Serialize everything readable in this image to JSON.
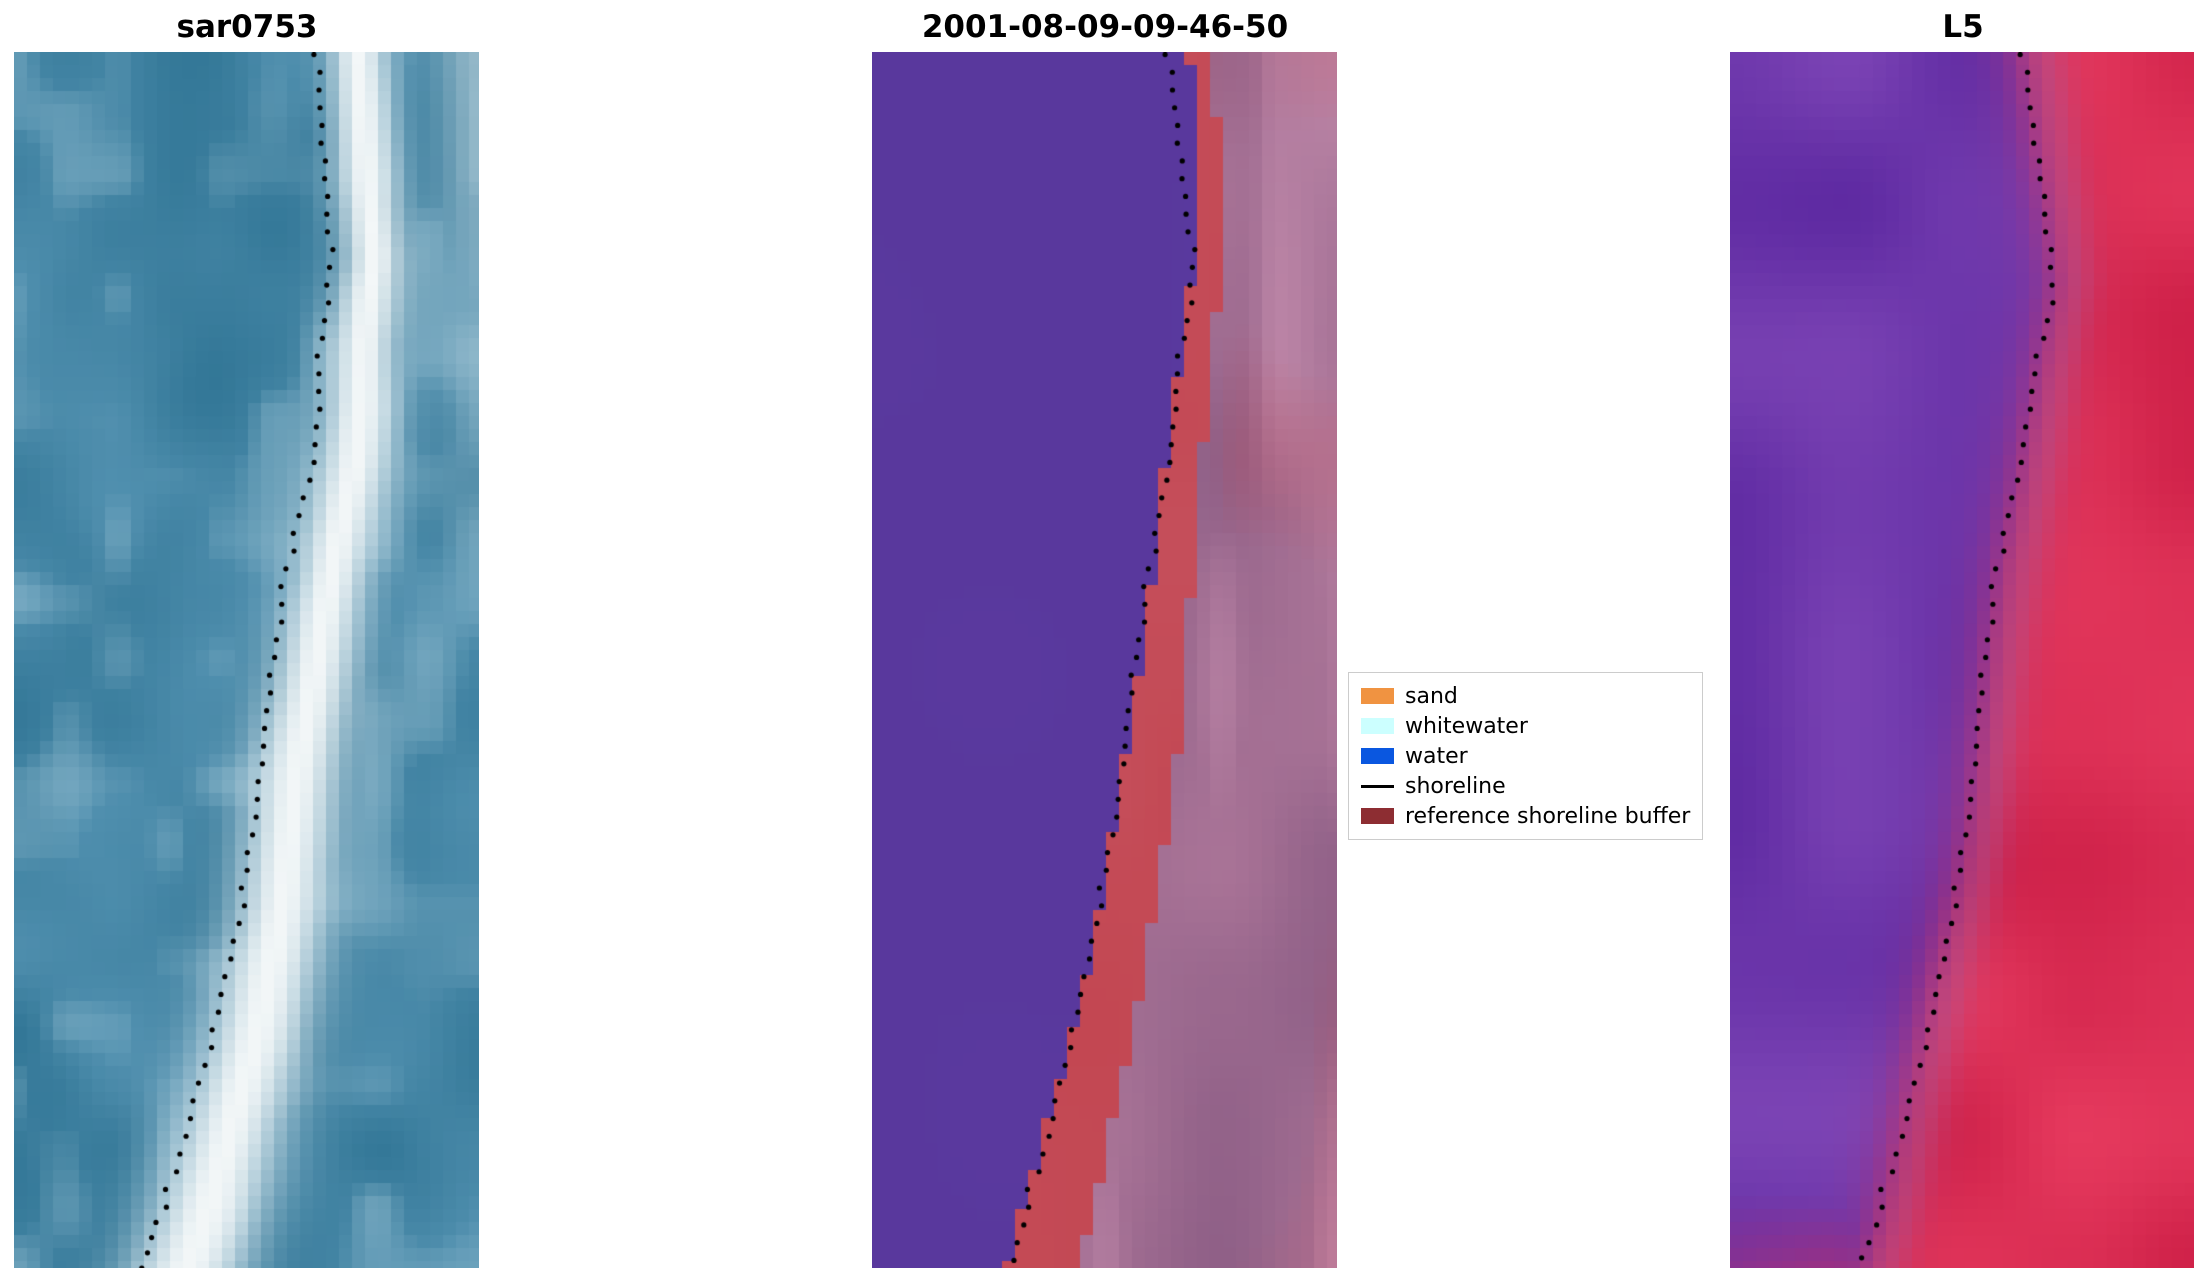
{
  "figure": {
    "background": "#ffffff"
  },
  "chart_data": {
    "type": "heatmap",
    "description": "Three-panel satellite shoreline detection figure: SAR image, classified image with reference shoreline buffer, and Landsat 5 image, each overlaid with a dotted detected shoreline.",
    "shoreline_color": "#000000",
    "axes": {
      "visible": false,
      "grid": false
    },
    "panels": [
      {
        "id": "sar0753",
        "title": "sar0753",
        "kind": "sar",
        "palette": {
          "dark": "#2f7494",
          "mid": "#5291b0",
          "light": "#a6c9d8",
          "bright": "#f3f7f8"
        },
        "shoreline": [
          [
            0,
            0.65
          ],
          [
            0.06,
            0.66
          ],
          [
            0.12,
            0.672
          ],
          [
            0.17,
            0.685
          ],
          [
            0.2,
            0.672
          ],
          [
            0.24,
            0.66
          ],
          [
            0.29,
            0.655
          ],
          [
            0.34,
            0.638
          ],
          [
            0.4,
            0.6
          ],
          [
            0.46,
            0.572
          ],
          [
            0.52,
            0.553
          ],
          [
            0.58,
            0.53
          ],
          [
            0.64,
            0.51
          ],
          [
            0.7,
            0.49
          ],
          [
            0.76,
            0.455
          ],
          [
            0.82,
            0.42
          ],
          [
            0.88,
            0.373
          ],
          [
            0.94,
            0.33
          ],
          [
            1,
            0.275
          ]
        ]
      },
      {
        "id": "classified",
        "title": "2001-08-09-09-46-50",
        "kind": "classified",
        "palette": {
          "water_class": "#59389d",
          "buffer_band": "#c34752",
          "mauve_dark": "#8a5c84",
          "mauve_light": "#ab7598",
          "pink": "#c890b0"
        },
        "shoreline": [
          [
            0,
            0.635
          ],
          [
            0.06,
            0.655
          ],
          [
            0.12,
            0.672
          ],
          [
            0.17,
            0.695
          ],
          [
            0.21,
            0.68
          ],
          [
            0.26,
            0.66
          ],
          [
            0.31,
            0.645
          ],
          [
            0.36,
            0.625
          ],
          [
            0.42,
            0.6
          ],
          [
            0.48,
            0.575
          ],
          [
            0.54,
            0.553
          ],
          [
            0.6,
            0.53
          ],
          [
            0.66,
            0.508
          ],
          [
            0.72,
            0.478
          ],
          [
            0.78,
            0.447
          ],
          [
            0.84,
            0.41
          ],
          [
            0.9,
            0.37
          ],
          [
            0.95,
            0.33
          ],
          [
            1,
            0.295
          ]
        ]
      },
      {
        "id": "L5",
        "title": "L5",
        "kind": "rgb",
        "palette": {
          "purple_dark": "#5e2aa2",
          "purple_light": "#7c44b5",
          "red_dark": "#ce2048",
          "red_light": "#e63a5e",
          "blend_pink": "#c06898"
        },
        "shoreline": [
          [
            0,
            0.63
          ],
          [
            0.07,
            0.655
          ],
          [
            0.13,
            0.68
          ],
          [
            0.19,
            0.698
          ],
          [
            0.24,
            0.672
          ],
          [
            0.3,
            0.64
          ],
          [
            0.36,
            0.61
          ],
          [
            0.42,
            0.578
          ],
          [
            0.48,
            0.556
          ],
          [
            0.55,
            0.535
          ],
          [
            0.62,
            0.512
          ],
          [
            0.68,
            0.492
          ],
          [
            0.74,
            0.462
          ],
          [
            0.8,
            0.432
          ],
          [
            0.86,
            0.39
          ],
          [
            0.92,
            0.345
          ],
          [
            0.97,
            0.305
          ],
          [
            1,
            0.278
          ]
        ]
      }
    ],
    "legend": {
      "border_color": "#cccccc",
      "background": "#ffffff",
      "items": [
        {
          "label": "sand",
          "swatch": "patch",
          "color": "#f09341"
        },
        {
          "label": "whitewater",
          "swatch": "patch",
          "color": "#ccffff"
        },
        {
          "label": "water",
          "swatch": "patch",
          "color": "#0a57e0"
        },
        {
          "label": "shoreline",
          "swatch": "line",
          "color": "#000000"
        },
        {
          "label": "reference shoreline buffer",
          "swatch": "patch",
          "color": "#8d2d32"
        }
      ]
    }
  }
}
